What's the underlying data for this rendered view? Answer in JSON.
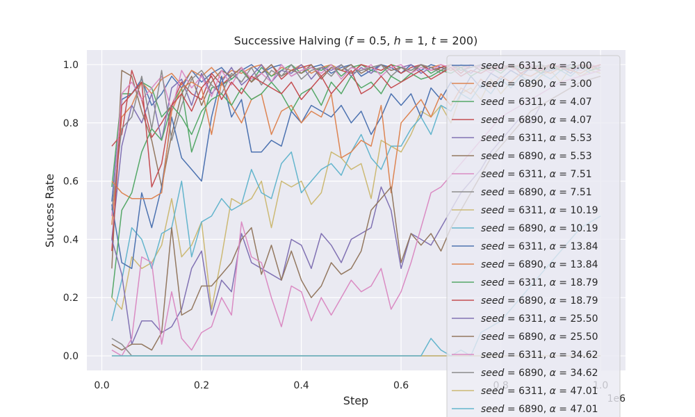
{
  "chart_data": {
    "type": "line",
    "title": "Successive Halving (f = 0.5, h = 1, t = 200)",
    "title_parts": {
      "prefix": "Successive Halving (",
      "f_value": "0.5",
      "h_value": "1",
      "t_value": "200",
      "suffix": ")"
    },
    "xlabel": "Step",
    "ylabel": "Success Rate",
    "x_offset_label": "1e6",
    "xlim": [
      -0.03,
      1.05
    ],
    "ylim": [
      -0.05,
      1.05
    ],
    "xticks": [
      0.0,
      0.2,
      0.4,
      0.6,
      0.8,
      1.0
    ],
    "xtick_labels": [
      "0.0",
      "0.2",
      "0.4",
      "0.6",
      "0.8",
      "1.0"
    ],
    "yticks": [
      0.0,
      0.2,
      0.4,
      0.6,
      0.8,
      1.0
    ],
    "ytick_labels": [
      "0.0",
      "0.2",
      "0.4",
      "0.6",
      "0.8",
      "1.0"
    ],
    "grid": true,
    "legend_position": "upper-right",
    "x": [
      0.02,
      0.04,
      0.06,
      0.08,
      0.1,
      0.12,
      0.14,
      0.16,
      0.18,
      0.2,
      0.22,
      0.24,
      0.26,
      0.28,
      0.3,
      0.32,
      0.34,
      0.36,
      0.38,
      0.4,
      0.42,
      0.44,
      0.46,
      0.48,
      0.5,
      0.52,
      0.54,
      0.56,
      0.58,
      0.6,
      0.62,
      0.64,
      0.66,
      0.68,
      0.7,
      0.72,
      0.74,
      0.76,
      0.78,
      0.8,
      0.82,
      0.84,
      0.86,
      0.88,
      0.9,
      0.92,
      0.94,
      0.96,
      0.98,
      1.0
    ],
    "series": [
      {
        "seed": "6311",
        "alpha": "3.00",
        "color": "#4c72b0",
        "values": [
          0.53,
          0.88,
          0.9,
          0.95,
          0.86,
          0.9,
          0.96,
          0.92,
          0.98,
          0.94,
          0.97,
          0.99,
          0.95,
          0.98,
          1.0,
          0.97,
          0.99,
          1.0,
          0.96,
          0.98,
          0.99,
          1.0,
          0.97,
          0.99,
          1.0,
          0.96,
          0.98,
          1.0,
          0.99,
          0.97,
          1.0,
          0.98,
          1.0,
          0.99,
          0.98,
          1.0,
          0.99,
          1.0,
          0.98,
          0.99,
          1.0,
          0.99,
          1.0,
          0.98,
          1.0,
          0.99,
          1.0,
          0.99,
          1.0,
          0.98
        ]
      },
      {
        "seed": "6890",
        "alpha": "3.00",
        "color": "#dd8452",
        "values": [
          0.45,
          0.82,
          0.86,
          0.94,
          0.9,
          0.95,
          0.97,
          0.93,
          0.98,
          0.96,
          0.99,
          0.95,
          0.98,
          0.97,
          0.99,
          1.0,
          0.96,
          0.99,
          0.98,
          1.0,
          0.97,
          0.99,
          1.0,
          0.98,
          0.97,
          1.0,
          0.99,
          0.98,
          1.0,
          0.99,
          0.98,
          1.0,
          0.99,
          1.0,
          0.98,
          0.99,
          1.0,
          0.99,
          0.98,
          1.0,
          0.99,
          1.0,
          0.98,
          0.99,
          1.0,
          0.99,
          0.98,
          1.0,
          0.99,
          1.0
        ]
      },
      {
        "seed": "6311",
        "alpha": "4.07",
        "color": "#55a868",
        "values": [
          0.58,
          0.9,
          0.9,
          0.94,
          0.92,
          0.82,
          0.86,
          0.92,
          0.7,
          0.8,
          0.92,
          0.93,
          0.95,
          0.98,
          0.94,
          0.99,
          0.96,
          0.98,
          1.0,
          0.97,
          0.99,
          0.98,
          1.0,
          0.96,
          0.99,
          1.0,
          0.98,
          0.97,
          1.0,
          0.99,
          0.98,
          1.0,
          0.97,
          0.99,
          1.0,
          0.98,
          0.99,
          1.0,
          0.98,
          0.99,
          1.0,
          0.97,
          0.99,
          1.0,
          0.98,
          1.0,
          0.99,
          0.98,
          1.0,
          0.99
        ]
      },
      {
        "seed": "6890",
        "alpha": "4.07",
        "color": "#c44e52",
        "values": [
          0.72,
          0.76,
          0.98,
          0.88,
          0.75,
          0.8,
          0.86,
          0.94,
          0.9,
          0.88,
          0.97,
          0.93,
          0.96,
          0.99,
          0.94,
          0.97,
          1.0,
          0.95,
          0.98,
          0.99,
          1.0,
          0.96,
          0.99,
          0.98,
          0.97,
          1.0,
          0.99,
          0.98,
          1.0,
          0.97,
          0.99,
          1.0,
          0.98,
          0.99,
          1.0,
          0.97,
          1.0,
          0.99,
          0.98,
          1.0,
          0.99,
          0.98,
          1.0,
          0.99,
          1.0,
          0.98,
          0.99,
          1.0,
          0.99,
          1.0
        ]
      },
      {
        "seed": "6311",
        "alpha": "5.53",
        "color": "#8172b3",
        "values": [
          0.4,
          0.72,
          0.86,
          0.8,
          0.9,
          0.74,
          0.92,
          0.95,
          0.86,
          0.97,
          0.9,
          0.94,
          0.99,
          0.93,
          0.96,
          1.0,
          0.94,
          0.98,
          0.97,
          1.0,
          0.95,
          0.99,
          0.98,
          1.0,
          0.96,
          0.99,
          0.97,
          1.0,
          0.98,
          0.99,
          1.0,
          0.97,
          0.99,
          0.98,
          1.0,
          0.99,
          0.97,
          1.0,
          0.99,
          0.98,
          1.0,
          0.99,
          1.0,
          0.97,
          0.99,
          1.0,
          0.98,
          0.99,
          1.0,
          0.99
        ]
      },
      {
        "seed": "6890",
        "alpha": "5.53",
        "color": "#937860",
        "values": [
          0.3,
          0.98,
          0.96,
          0.84,
          0.74,
          0.58,
          0.76,
          0.9,
          0.96,
          0.86,
          0.94,
          0.98,
          0.96,
          0.99,
          0.94,
          0.97,
          1.0,
          0.96,
          0.98,
          0.97,
          1.0,
          0.95,
          0.99,
          0.98,
          1.0,
          0.97,
          0.99,
          1.0,
          0.98,
          0.99,
          0.97,
          1.0,
          0.99,
          0.98,
          1.0,
          0.99,
          1.0,
          0.98,
          0.99,
          1.0,
          0.99,
          0.98,
          1.0,
          0.99,
          1.0,
          0.98,
          0.99,
          1.0,
          0.98,
          1.0
        ]
      },
      {
        "seed": "6311",
        "alpha": "7.51",
        "color": "#da8bc3",
        "values": [
          0.48,
          0.9,
          0.94,
          0.88,
          0.92,
          0.96,
          0.84,
          0.98,
          0.92,
          0.96,
          0.89,
          0.98,
          0.93,
          0.99,
          0.95,
          0.97,
          0.94,
          1.0,
          0.96,
          0.98,
          0.99,
          0.97,
          1.0,
          0.95,
          0.99,
          0.98,
          1.0,
          0.96,
          0.99,
          1.0,
          0.97,
          0.99,
          0.98,
          1.0,
          0.99,
          0.98,
          1.0,
          0.99,
          0.97,
          1.0,
          0.98,
          0.99,
          1.0,
          0.98,
          0.99,
          1.0,
          0.99,
          0.98,
          1.0,
          0.99
        ]
      },
      {
        "seed": "6890",
        "alpha": "7.51",
        "color": "#8c8c8c",
        "values": [
          0.5,
          0.78,
          0.82,
          0.96,
          0.78,
          0.98,
          0.74,
          0.86,
          0.95,
          0.98,
          0.93,
          0.9,
          0.97,
          0.94,
          0.99,
          0.93,
          0.98,
          0.96,
          1.0,
          0.95,
          0.98,
          0.99,
          0.96,
          1.0,
          0.97,
          0.98,
          0.99,
          1.0,
          0.96,
          0.99,
          0.98,
          1.0,
          0.99,
          0.97,
          1.0,
          0.98,
          0.99,
          1.0,
          0.98,
          0.99,
          1.0,
          0.99,
          0.98,
          1.0,
          0.99,
          0.98,
          1.0,
          0.99,
          1.0,
          0.98
        ]
      },
      {
        "seed": "6311",
        "alpha": "10.19",
        "color": "#ccb974",
        "values": [
          0.2,
          0.16,
          0.34,
          0.3,
          0.32,
          0.38,
          0.54,
          0.34,
          0.38,
          0.46,
          0.16,
          0.34,
          0.54,
          0.52,
          0.54,
          0.6,
          0.44,
          0.6,
          0.58,
          0.6,
          0.52,
          0.56,
          0.7,
          0.68,
          0.64,
          0.66,
          0.54,
          0.74,
          0.72,
          0.7,
          0.76,
          0.84,
          0.82,
          0.86,
          0.8,
          0.9,
          0.92,
          0.88,
          0.95,
          0.9,
          0.94,
          0.97,
          0.92,
          0.96,
          0.98,
          0.94,
          0.99,
          0.96,
          0.98,
          0.97
        ]
      },
      {
        "seed": "6890",
        "alpha": "10.19",
        "color": "#64b5cd",
        "values": [
          0.12,
          0.26,
          0.44,
          0.4,
          0.3,
          0.42,
          0.44,
          0.6,
          0.34,
          0.46,
          0.48,
          0.54,
          0.5,
          0.52,
          0.64,
          0.56,
          0.54,
          0.66,
          0.7,
          0.56,
          0.6,
          0.64,
          0.66,
          0.62,
          0.7,
          0.76,
          0.68,
          0.64,
          0.72,
          0.72,
          0.78,
          0.82,
          0.76,
          0.86,
          0.84,
          0.9,
          0.88,
          0.93,
          0.9,
          0.95,
          0.92,
          0.96,
          0.94,
          0.97,
          0.95,
          0.98,
          0.96,
          0.99,
          0.97,
          0.98
        ]
      },
      {
        "seed": "6311",
        "alpha": "13.84",
        "color": "#4c72b0",
        "values": [
          0.52,
          0.32,
          0.3,
          0.56,
          0.44,
          0.58,
          0.82,
          0.68,
          0.64,
          0.6,
          0.82,
          0.96,
          0.82,
          0.88,
          0.7,
          0.7,
          0.74,
          0.72,
          0.84,
          0.8,
          0.86,
          0.84,
          0.82,
          0.86,
          0.8,
          0.84,
          0.76,
          0.82,
          0.9,
          0.86,
          0.9,
          0.82,
          0.92,
          0.88,
          0.94,
          0.9,
          0.96,
          0.92,
          0.97,
          0.95,
          0.98,
          0.96,
          0.99,
          0.97,
          0.98,
          0.99,
          0.97,
          1.0,
          0.98,
          0.99
        ]
      },
      {
        "seed": "6890",
        "alpha": "13.84",
        "color": "#dd8452",
        "values": [
          0.6,
          0.56,
          0.54,
          0.54,
          0.54,
          0.56,
          0.84,
          0.92,
          0.94,
          0.92,
          0.76,
          0.94,
          0.86,
          0.8,
          0.88,
          0.9,
          0.76,
          0.84,
          0.86,
          0.8,
          0.84,
          0.82,
          0.9,
          0.68,
          0.7,
          0.74,
          0.72,
          0.86,
          0.56,
          0.8,
          0.84,
          0.88,
          0.82,
          0.9,
          0.86,
          0.92,
          0.9,
          0.95,
          0.92,
          0.96,
          0.94,
          0.97,
          0.96,
          0.98,
          0.97,
          0.99,
          0.98,
          0.97,
          0.99,
          0.98
        ]
      },
      {
        "seed": "6311",
        "alpha": "18.79",
        "color": "#55a868",
        "values": [
          0.2,
          0.5,
          0.56,
          0.7,
          0.78,
          0.74,
          0.86,
          0.82,
          0.76,
          0.84,
          0.88,
          0.9,
          0.86,
          0.92,
          0.88,
          0.9,
          0.94,
          0.9,
          0.84,
          0.9,
          0.92,
          0.86,
          0.94,
          0.9,
          0.96,
          0.92,
          0.94,
          0.9,
          0.96,
          0.94,
          0.97,
          0.95,
          0.96,
          0.98,
          0.97,
          0.99,
          0.96,
          0.98,
          0.99,
          0.97,
          1.0,
          0.98,
          0.99,
          0.97,
          1.0,
          0.98,
          0.99,
          1.0,
          0.98,
          0.99
        ]
      },
      {
        "seed": "6890",
        "alpha": "18.79",
        "color": "#c44e52",
        "values": [
          0.36,
          0.86,
          0.9,
          0.94,
          0.58,
          0.66,
          0.86,
          0.9,
          0.84,
          0.92,
          0.96,
          0.88,
          0.94,
          0.9,
          0.96,
          0.94,
          0.92,
          0.9,
          0.94,
          0.88,
          0.92,
          0.96,
          0.9,
          0.94,
          0.98,
          0.9,
          0.92,
          0.96,
          0.92,
          0.94,
          0.96,
          0.98,
          0.95,
          0.97,
          0.99,
          0.96,
          0.98,
          0.97,
          0.99,
          0.98,
          1.0,
          0.97,
          0.99,
          0.98,
          1.0,
          0.99,
          0.98,
          1.0,
          0.99,
          1.0
        ]
      },
      {
        "seed": "6311",
        "alpha": "25.50",
        "color": "#8172b3",
        "values": [
          0.4,
          0.28,
          0.04,
          0.12,
          0.12,
          0.08,
          0.1,
          0.16,
          0.3,
          0.36,
          0.14,
          0.26,
          0.22,
          0.42,
          0.32,
          0.3,
          0.28,
          0.26,
          0.4,
          0.38,
          0.3,
          0.42,
          0.38,
          0.32,
          0.4,
          0.42,
          0.44,
          0.58,
          0.5,
          0.3,
          0.42,
          0.4,
          0.38,
          0.44,
          0.5,
          0.56,
          0.6,
          0.64,
          0.7,
          0.74,
          0.78,
          0.82,
          0.8,
          0.86,
          0.88,
          0.9,
          0.92,
          0.94,
          0.95,
          0.96
        ]
      },
      {
        "seed": "6890",
        "alpha": "25.50",
        "color": "#937860",
        "values": [
          0.04,
          0.02,
          0.04,
          0.04,
          0.02,
          0.08,
          0.44,
          0.14,
          0.16,
          0.24,
          0.24,
          0.28,
          0.32,
          0.4,
          0.44,
          0.28,
          0.38,
          0.26,
          0.36,
          0.26,
          0.2,
          0.24,
          0.32,
          0.28,
          0.3,
          0.36,
          0.5,
          0.54,
          0.58,
          0.32,
          0.42,
          0.38,
          0.42,
          0.36,
          0.44,
          0.5,
          0.56,
          0.62,
          0.68,
          0.72,
          0.76,
          0.8,
          0.84,
          0.86,
          0.88,
          0.9,
          0.92,
          0.94,
          0.95,
          0.96
        ]
      },
      {
        "seed": "6311",
        "alpha": "34.62",
        "color": "#da8bc3",
        "values": [
          0.02,
          0.0,
          0.06,
          0.34,
          0.32,
          0.04,
          0.22,
          0.06,
          0.02,
          0.08,
          0.1,
          0.2,
          0.14,
          0.46,
          0.34,
          0.32,
          0.2,
          0.1,
          0.24,
          0.22,
          0.12,
          0.2,
          0.14,
          0.2,
          0.26,
          0.22,
          0.24,
          0.3,
          0.16,
          0.22,
          0.32,
          0.44,
          0.56,
          0.58,
          0.62,
          0.66,
          0.7,
          0.74,
          0.78,
          0.82,
          0.84,
          0.86,
          0.88,
          0.9,
          0.92,
          0.94,
          0.95,
          0.96,
          0.97,
          0.98
        ]
      },
      {
        "seed": "6890",
        "alpha": "34.62",
        "color": "#8c8c8c",
        "values": [
          0.06,
          0.04,
          0.0,
          0.0,
          0.0,
          0.0,
          0.0,
          0.0,
          0.0,
          0.0,
          0.0,
          0.0,
          0.0,
          0.0,
          0.0,
          0.0,
          0.0,
          0.0,
          0.0,
          0.0,
          0.0,
          0.0,
          0.0,
          0.0,
          0.0,
          0.0,
          0.0,
          0.0,
          0.0,
          0.0,
          0.0,
          0.0,
          0.0,
          0.0,
          0.0,
          0.0,
          0.0,
          0.0,
          0.0,
          0.0,
          0.0,
          0.0,
          0.0,
          0.0,
          0.0,
          0.0,
          0.0,
          0.0,
          0.0,
          0.0
        ]
      },
      {
        "seed": "6311",
        "alpha": "47.01",
        "color": "#ccb974",
        "values": [
          0.0,
          0.0,
          0.0,
          0.0,
          0.0,
          0.0,
          0.0,
          0.0,
          0.0,
          0.0,
          0.0,
          0.0,
          0.0,
          0.0,
          0.0,
          0.0,
          0.0,
          0.0,
          0.0,
          0.0,
          0.0,
          0.0,
          0.0,
          0.0,
          0.0,
          0.0,
          0.0,
          0.0,
          0.0,
          0.0,
          0.0,
          0.0,
          0.0,
          0.0,
          0.0,
          0.0,
          0.0,
          0.0,
          0.0,
          0.0,
          0.0,
          0.0,
          0.0,
          0.0,
          0.0,
          0.0,
          0.0,
          0.0,
          0.0,
          0.0
        ]
      },
      {
        "seed": "6890",
        "alpha": "47.01",
        "color": "#64b5cd",
        "values": [
          0.0,
          0.0,
          0.0,
          0.0,
          0.0,
          0.0,
          0.0,
          0.0,
          0.0,
          0.0,
          0.0,
          0.0,
          0.0,
          0.0,
          0.0,
          0.0,
          0.0,
          0.0,
          0.0,
          0.0,
          0.0,
          0.0,
          0.0,
          0.0,
          0.0,
          0.0,
          0.0,
          0.0,
          0.0,
          0.0,
          0.0,
          0.0,
          0.06,
          0.02,
          0.0,
          0.02,
          0.0,
          0.08,
          0.1,
          0.12,
          0.16,
          0.2,
          0.24,
          0.28,
          0.32,
          0.36,
          0.4,
          0.44,
          0.46,
          0.48
        ]
      }
    ]
  }
}
